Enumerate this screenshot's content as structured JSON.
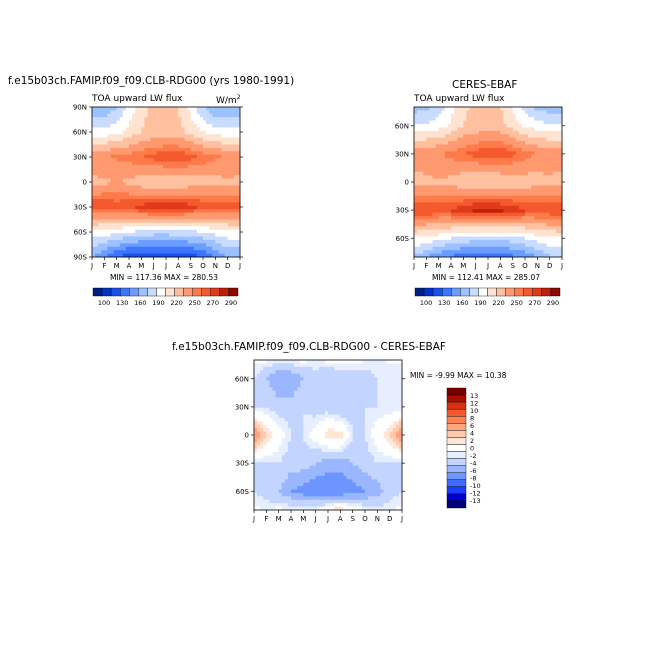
{
  "colors": {
    "scale_abs": [
      "#001f80",
      "#0034c8",
      "#1a52f0",
      "#3d75ff",
      "#6a9dff",
      "#9dc1ff",
      "#c9dcff",
      "#ffffff",
      "#ffe3d1",
      "#ffc0a0",
      "#ff9a70",
      "#ff7a4a",
      "#f5592e",
      "#e03a1a",
      "#bf1e0c",
      "#8c0a00"
    ],
    "scale_diff": [
      "#00007a",
      "#0000c8",
      "#1a3cff",
      "#3d6bff",
      "#6c95ff",
      "#9ab6ff",
      "#c3d4ff",
      "#e6eeff",
      "#ffffff",
      "#ffe6d6",
      "#ffc9ad",
      "#ffa67f",
      "#ff8255",
      "#f55a2e",
      "#d9300f",
      "#a80f00",
      "#7a0000"
    ]
  },
  "panels": [
    {
      "title": "f.e15b03ch.FAMIP.f09_f09.CLB-RDG00 (yrs 1980-1991)",
      "variable": "TOA upward LW flux",
      "units": "W/m",
      "units_sup": "2",
      "stats": "MIN = 117.36   MAX = 280.53",
      "yticks": [
        "90N",
        "60N",
        "30N",
        "0",
        "30S",
        "60S",
        "90S"
      ],
      "xticks": [
        "J",
        "F",
        "M",
        "A",
        "M",
        "J",
        "J",
        "A",
        "S",
        "O",
        "N",
        "D",
        "J"
      ],
      "colorbar_labels": [
        "100",
        "130",
        "160",
        "190",
        "220",
        "250",
        "270",
        "290"
      ]
    },
    {
      "title": "CERES-EBAF",
      "variable": "TOA upward LW flux",
      "stats": "MIN = 112.41   MAX = 285.07",
      "yticks": [
        "60N",
        "30N",
        "0",
        "30S",
        "60S"
      ],
      "xticks": [
        "J",
        "F",
        "M",
        "A",
        "M",
        "J",
        "J",
        "A",
        "S",
        "O",
        "N",
        "D",
        "J"
      ],
      "colorbar_labels": [
        "100",
        "130",
        "160",
        "190",
        "220",
        "250",
        "270",
        "290"
      ]
    },
    {
      "title": "f.e15b03ch.FAMIP.f09_f09.CLB-RDG00 - CERES-EBAF",
      "stats": "MIN =   -9.99  MAX =   10.38",
      "yticks": [
        "60N",
        "30N",
        "0",
        "30S",
        "60S"
      ],
      "xticks": [
        "J",
        "F",
        "M",
        "A",
        "M",
        "J",
        "J",
        "A",
        "S",
        "O",
        "N",
        "D",
        "J"
      ],
      "colorbar_labels": [
        "13",
        "12",
        "10",
        "8",
        "6",
        "4",
        "2",
        "0",
        "-2",
        "-4",
        "-6",
        "-8",
        "-10",
        "-12",
        "-13"
      ]
    }
  ],
  "chart_data": [
    {
      "type": "heatmap",
      "title": "f.e15b03ch.FAMIP.f09_f09.CLB-RDG00 (yrs 1980-1991)",
      "subtitle": "TOA upward LW flux",
      "units": "W/m2",
      "x": [
        "J",
        "F",
        "M",
        "A",
        "M",
        "J",
        "J",
        "A",
        "S",
        "O",
        "N",
        "D",
        "J"
      ],
      "y": [
        "90N",
        "60N",
        "30N",
        "0",
        "30S",
        "60S",
        "90S"
      ],
      "values_by_latitude": {
        "90N": [
          160,
          160,
          175,
          195,
          215,
          225,
          225,
          220,
          200,
          175,
          160,
          160,
          160
        ],
        "60N": [
          195,
          195,
          200,
          210,
          220,
          225,
          225,
          225,
          215,
          205,
          198,
          195,
          195
        ],
        "30N": [
          250,
          250,
          252,
          255,
          260,
          265,
          270,
          270,
          265,
          258,
          252,
          250,
          250
        ],
        "0": [
          230,
          232,
          235,
          232,
          225,
          220,
          220,
          222,
          225,
          228,
          230,
          232,
          230
        ],
        "30S": [
          270,
          270,
          268,
          270,
          275,
          280,
          280,
          280,
          275,
          270,
          268,
          268,
          270
        ],
        "60S": [
          200,
          198,
          195,
          190,
          185,
          182,
          182,
          183,
          185,
          190,
          195,
          200,
          200
        ],
        "90S": [
          160,
          145,
          130,
          120,
          117,
          118,
          118,
          120,
          122,
          130,
          145,
          160,
          160
        ]
      },
      "min": 117.36,
      "max": 280.53,
      "levels": [
        100,
        130,
        160,
        190,
        220,
        250,
        270,
        290
      ]
    },
    {
      "type": "heatmap",
      "title": "CERES-EBAF",
      "subtitle": "TOA upward LW flux",
      "x": [
        "J",
        "F",
        "M",
        "A",
        "M",
        "J",
        "J",
        "A",
        "S",
        "O",
        "N",
        "D",
        "J"
      ],
      "y": [
        "60N",
        "30N",
        "0",
        "30S",
        "60S"
      ],
      "values_by_latitude": {
        "90N": [
          155,
          158,
          172,
          195,
          215,
          225,
          225,
          220,
          198,
          172,
          158,
          155,
          155
        ],
        "60N": [
          193,
          193,
          198,
          208,
          220,
          225,
          225,
          225,
          213,
          203,
          196,
          193,
          193
        ],
        "30N": [
          248,
          248,
          250,
          254,
          260,
          265,
          270,
          270,
          264,
          256,
          250,
          248,
          248
        ],
        "0": [
          228,
          230,
          233,
          230,
          223,
          218,
          218,
          220,
          223,
          226,
          228,
          230,
          228
        ],
        "30S": [
          272,
          272,
          270,
          272,
          278,
          285,
          285,
          284,
          278,
          272,
          270,
          270,
          272
        ],
        "60S": [
          205,
          200,
          196,
          190,
          185,
          182,
          180,
          180,
          184,
          190,
          197,
          203,
          205
        ],
        "90S": [
          158,
          140,
          125,
          117,
          113,
          112,
          114,
          118,
          120,
          128,
          142,
          158,
          158
        ]
      },
      "min": 112.41,
      "max": 285.07,
      "levels": [
        100,
        130,
        160,
        190,
        220,
        250,
        270,
        290
      ]
    },
    {
      "type": "heatmap",
      "title": "f.e15b03ch.FAMIP.f09_f09.CLB-RDG00 - CERES-EBAF",
      "x": [
        "J",
        "F",
        "M",
        "A",
        "M",
        "J",
        "J",
        "A",
        "S",
        "O",
        "N",
        "D",
        "J"
      ],
      "y": [
        "60N",
        "30N",
        "0",
        "30S",
        "60S"
      ],
      "values_by_latitude": {
        "90N": [
          0,
          1,
          1,
          2,
          1,
          0,
          1,
          2,
          1,
          0,
          -1,
          0,
          0
        ],
        "60N": [
          -2,
          -4,
          -6,
          -6,
          -4,
          -3,
          -4,
          -4,
          -3,
          -3,
          -2,
          -2,
          -2
        ],
        "30N": [
          -2,
          -2,
          -3,
          -3,
          -2,
          -3,
          -3,
          -4,
          -3,
          -2,
          -2,
          -2,
          -2
        ],
        "0": [
          6,
          2,
          0,
          -2,
          -2,
          0,
          2,
          2,
          -2,
          -2,
          0,
          2,
          6
        ],
        "30S": [
          -2,
          -2,
          -2,
          -3,
          -3,
          -4,
          -5,
          -5,
          -4,
          -3,
          -2,
          -2,
          -2
        ],
        "60S": [
          -2,
          -3,
          -4,
          -6,
          -7,
          -8,
          -8,
          -8,
          -7,
          -6,
          -5,
          -3,
          -2
        ],
        "90S": [
          0,
          0,
          1,
          2,
          2,
          3,
          5,
          8,
          4,
          2,
          0,
          0,
          0
        ]
      },
      "min": -9.99,
      "max": 10.38,
      "levels": [
        -13,
        -12,
        -10,
        -8,
        -6,
        -4,
        -2,
        0,
        2,
        4,
        6,
        8,
        10,
        12,
        13
      ]
    }
  ]
}
